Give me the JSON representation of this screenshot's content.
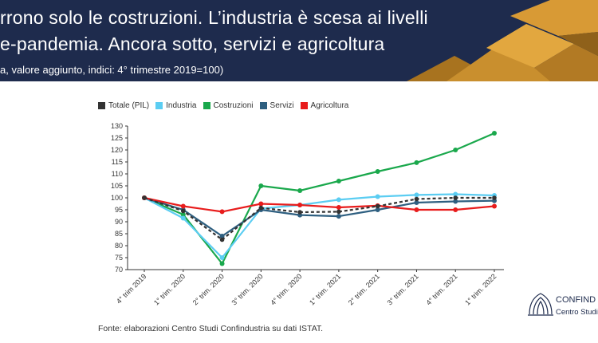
{
  "header": {
    "title_line1": "rrono solo le costruzioni. L’industria è scesa ai livelli",
    "title_line2": "e-pandemia. Ancora sotto, servizi e agricoltura",
    "subtitle": "a, valore aggiunto, indici: 4° trimestre 2019=100)"
  },
  "chart_data": {
    "type": "line",
    "title": "",
    "xlabel": "",
    "ylabel": "",
    "ylim": [
      70,
      130
    ],
    "yticks": [
      70,
      75,
      80,
      85,
      90,
      95,
      100,
      105,
      110,
      115,
      120,
      125,
      130
    ],
    "categories": [
      "4° trim 2019",
      "1° trim. 2020",
      "2° trim. 2020",
      "3° trim. 2020",
      "4° trim. 2020",
      "1° trim. 2021",
      "2° trim. 2021",
      "3° trim. 2021",
      "4° trim. 2021",
      "1° trim. 2022"
    ],
    "series": [
      {
        "name": "Totale (PIL)",
        "color": "#333333",
        "dashed": true,
        "values": [
          100,
          94.5,
          82.5,
          95.8,
          94,
          94.2,
          96.5,
          99.5,
          100,
          100
        ]
      },
      {
        "name": "Industria",
        "color": "#5bcdf2",
        "dashed": false,
        "values": [
          100,
          91.5,
          75,
          95.5,
          97,
          99.2,
          100.5,
          101.2,
          101.5,
          101
        ]
      },
      {
        "name": "Costruzioni",
        "color": "#1aa84c",
        "dashed": false,
        "values": [
          100,
          93,
          72.5,
          105,
          103,
          107,
          111,
          114.7,
          120,
          127
        ]
      },
      {
        "name": "Servizi",
        "color": "#2e5f80",
        "dashed": false,
        "values": [
          100,
          95,
          84,
          95,
          92.8,
          92.3,
          95,
          98,
          98.5,
          98.8
        ]
      },
      {
        "name": "Agricoltura",
        "color": "#e81c1c",
        "dashed": false,
        "values": [
          100,
          96.5,
          94.2,
          97.5,
          97,
          96,
          96.7,
          95,
          95,
          96.5
        ]
      }
    ],
    "legend_position": "top-left",
    "grid": false
  },
  "footer": {
    "source": "Fonte: elaborazioni Centro Studi Confindustria su dati ISTAT.",
    "logo_name": "CONFIND",
    "logo_sub": "Centro Studi"
  },
  "colors": {
    "banner": "#1e2b4d",
    "gold": "#c98f2e"
  }
}
